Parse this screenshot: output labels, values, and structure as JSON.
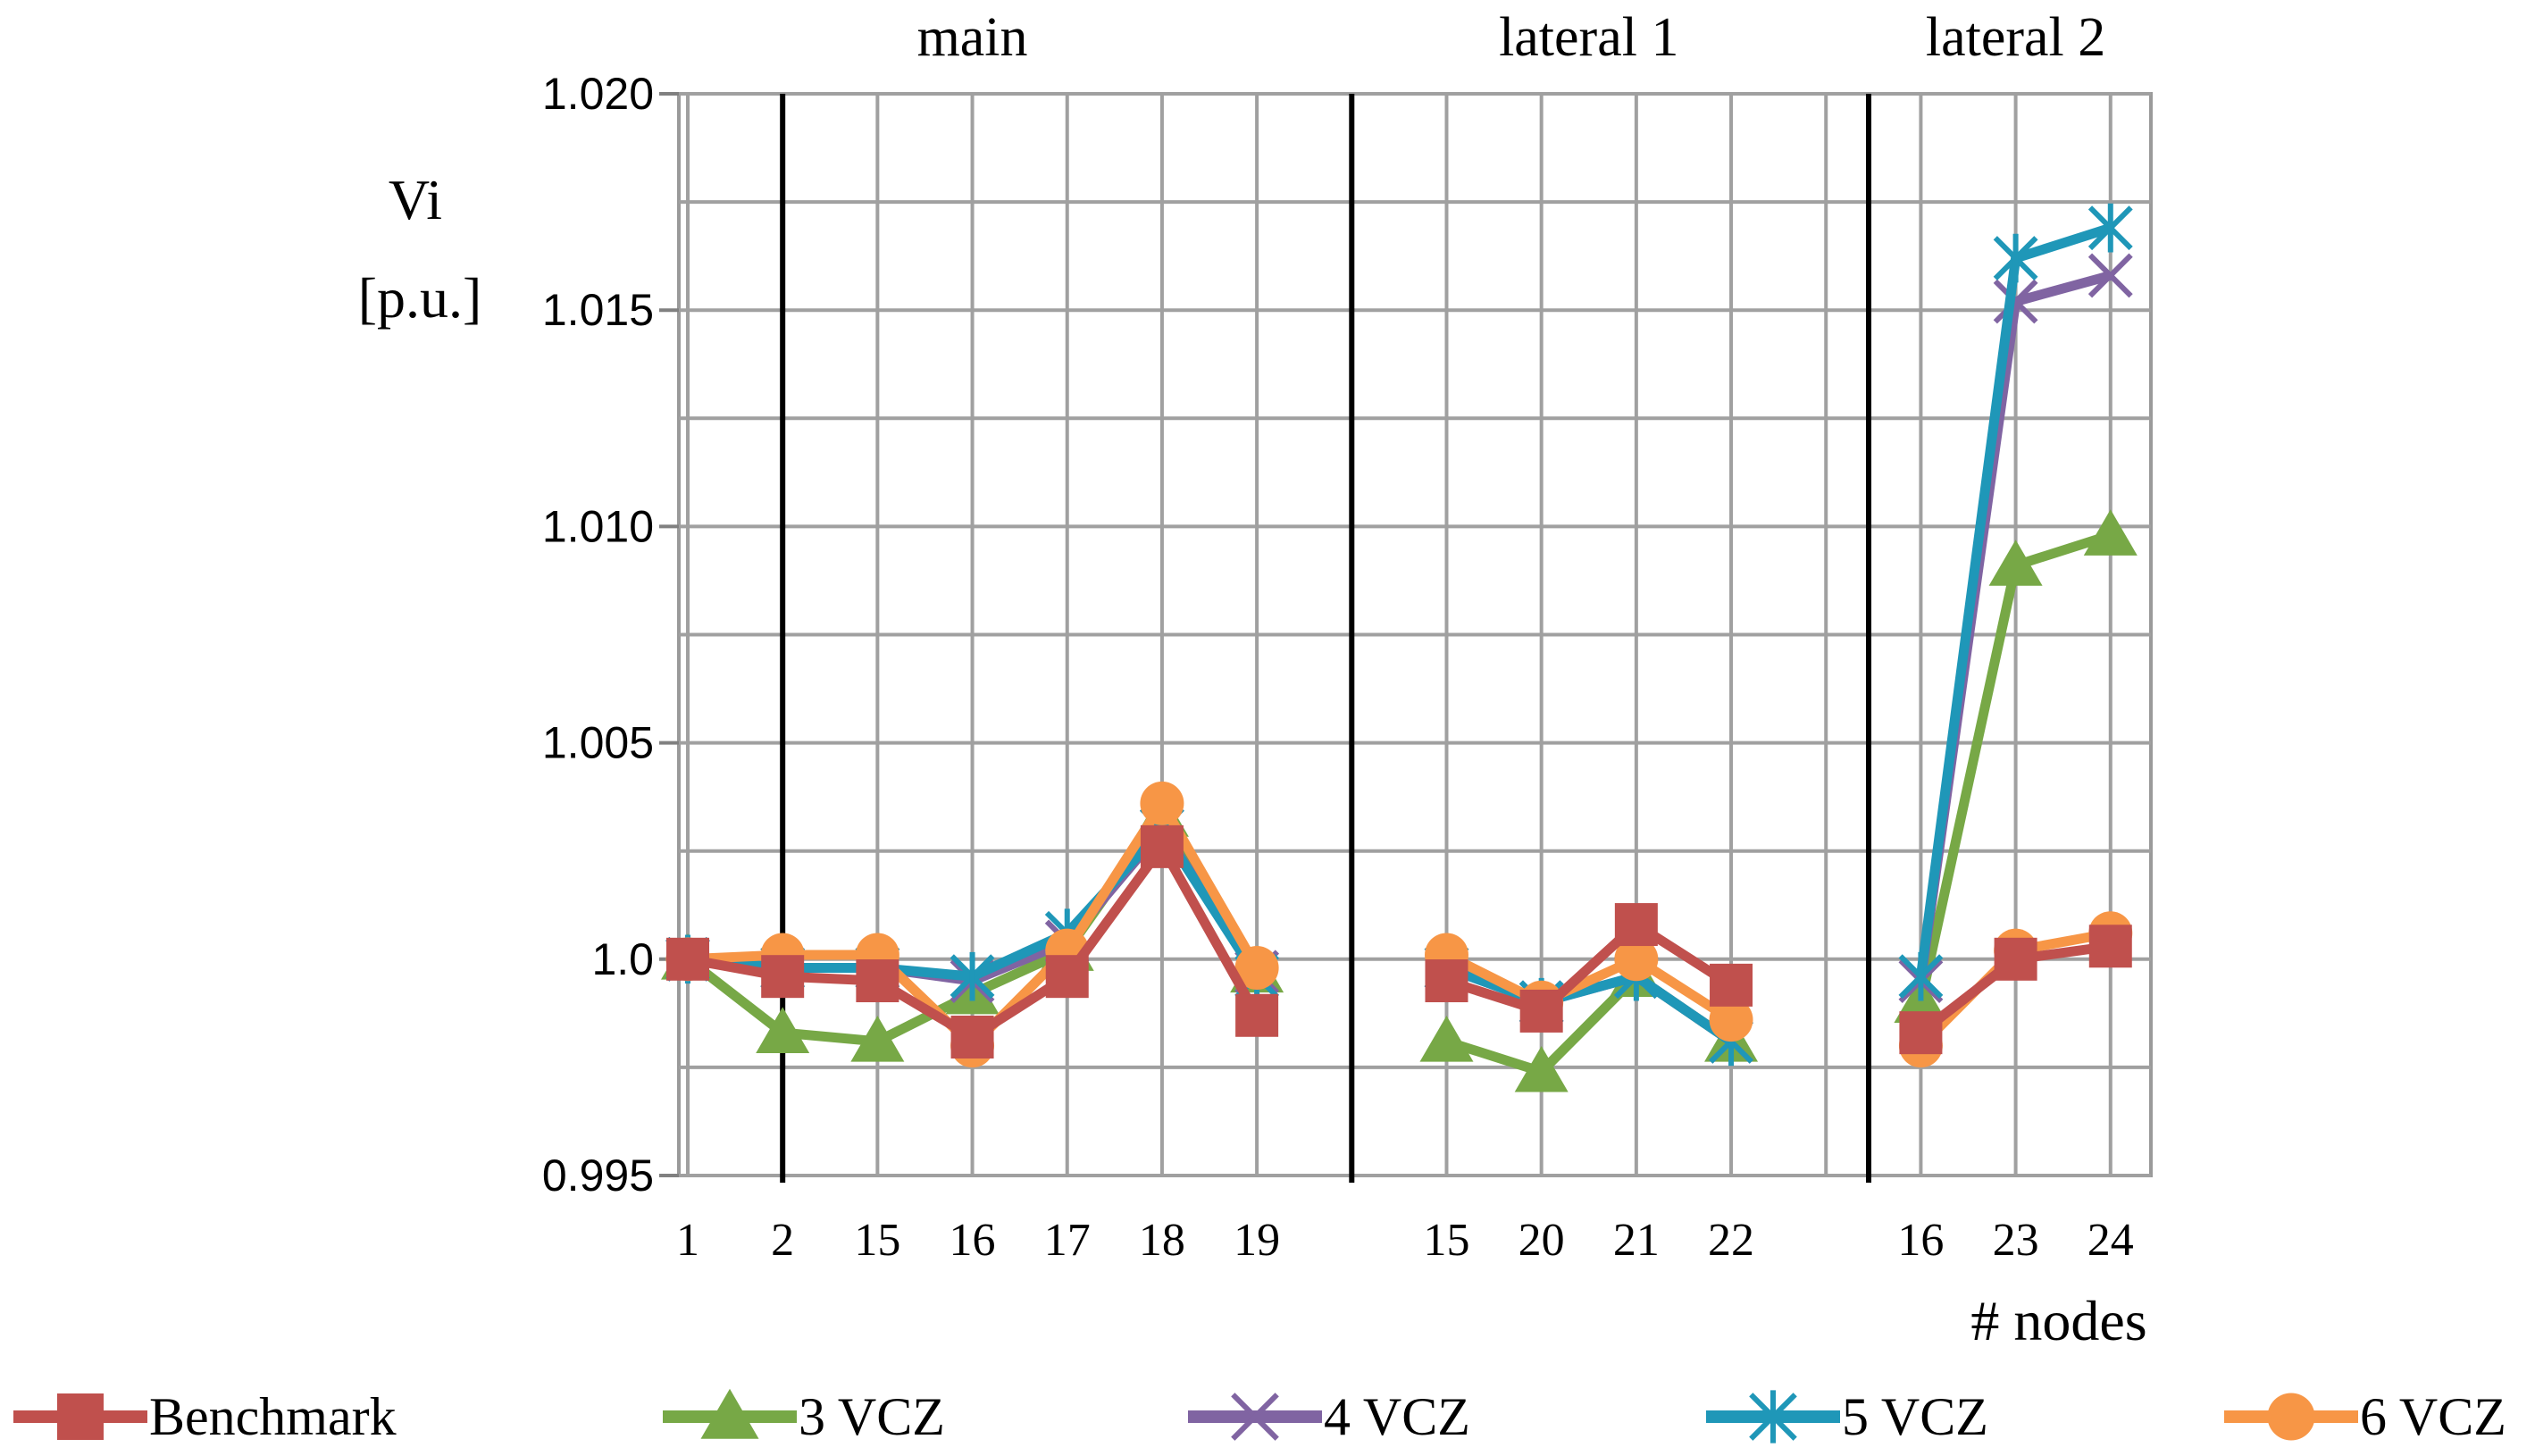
{
  "chart_data": {
    "type": "line",
    "title": "",
    "ylabel": "Vi",
    "ylabel_unit": "[p.u.]",
    "xlabel": "# nodes",
    "ylim": [
      0.995,
      1.02
    ],
    "y_ticks": [
      {
        "value": 0.995,
        "label": "0.995"
      },
      {
        "value": 1.0,
        "label": "1.0"
      },
      {
        "value": 1.005,
        "label": "1.005"
      },
      {
        "value": 1.01,
        "label": "1.010"
      },
      {
        "value": 1.015,
        "label": "1.015"
      },
      {
        "value": 1.02,
        "label": "1.020"
      }
    ],
    "grid": true,
    "categories": [
      "1",
      "2",
      "15",
      "16",
      "17",
      "18",
      "19",
      "",
      "15",
      "20",
      "21",
      "22",
      "",
      "16",
      "23",
      "24"
    ],
    "sections": [
      {
        "name": "main",
        "start": 0,
        "end": 6
      },
      {
        "name": "lateral 1",
        "start": 8,
        "end": 11
      },
      {
        "name": "lateral 2",
        "start": 13,
        "end": 15
      }
    ],
    "separators_after": [
      1,
      7,
      12
    ],
    "legend_position": "bottom",
    "series": [
      {
        "name": "Benchmark",
        "color": "#c0504d",
        "marker": "square",
        "values": [
          1.0,
          0.9996,
          0.9995,
          0.9982,
          0.9996,
          1.0026,
          0.9987,
          null,
          0.9995,
          0.9988,
          1.0008,
          0.9994,
          null,
          0.9983,
          1.0,
          1.0003
        ]
      },
      {
        "name": "3 VCZ",
        "color": "#77a846",
        "marker": "triangle",
        "values": [
          1.0,
          0.9983,
          0.9981,
          0.9992,
          1.0002,
          1.0033,
          0.9997,
          null,
          0.9981,
          0.9974,
          0.9996,
          0.9981,
          null,
          0.999,
          1.0091,
          1.0098
        ]
      },
      {
        "name": "4 VCZ",
        "color": "#8064a2",
        "marker": "x",
        "values": [
          1.0,
          0.9998,
          0.9998,
          0.9995,
          1.0004,
          1.003,
          0.9997,
          null,
          0.9998,
          0.999,
          0.9996,
          0.9981,
          null,
          0.9995,
          1.0152,
          1.0158
        ]
      },
      {
        "name": "5 VCZ",
        "color": "#1f97b8",
        "marker": "star",
        "values": [
          1.0,
          0.9998,
          0.9998,
          0.9996,
          1.0006,
          1.003,
          0.9996,
          null,
          0.9998,
          0.999,
          0.9996,
          0.9981,
          null,
          0.9996,
          1.0162,
          1.0169
        ]
      },
      {
        "name": "6 VCZ",
        "color": "#f79646",
        "marker": "circle",
        "values": [
          1.0,
          1.0001,
          1.0001,
          0.998,
          1.0002,
          1.0036,
          0.9998,
          null,
          1.0001,
          0.999,
          1.0,
          0.9986,
          null,
          0.998,
          1.0002,
          1.0006
        ]
      }
    ]
  }
}
